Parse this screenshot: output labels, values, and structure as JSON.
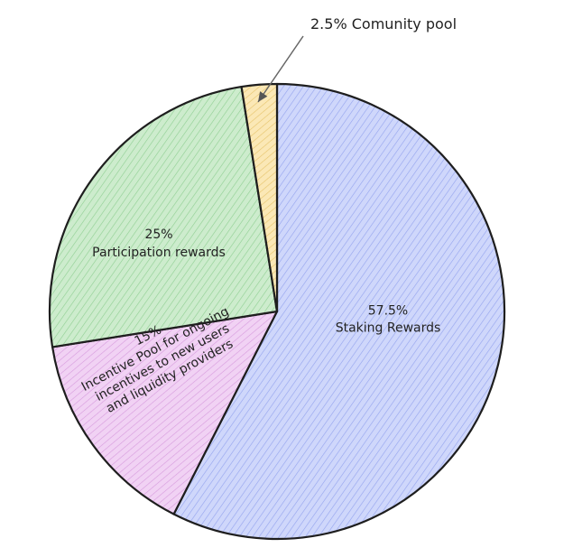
{
  "chart_data": {
    "type": "pie",
    "title": "",
    "start_angle_deg": 0,
    "direction": "clockwise",
    "slices": [
      {
        "value": 57.5,
        "label_lines": [
          "57.5%",
          "Staking Rewards"
        ],
        "color": "#cfd7fb",
        "hatch": "#93a3ee"
      },
      {
        "value": 15,
        "label_lines": [
          "15%",
          "Incentive Pool for ongoing",
          "incentives to new users",
          "and liquidity providers"
        ],
        "color": "#f1d2f4",
        "hatch": "#d79add"
      },
      {
        "value": 25,
        "label_lines": [
          "25%",
          "Participation rewards"
        ],
        "color": "#cdeccd",
        "hatch": "#8fcf92"
      },
      {
        "value": 2.5,
        "label_lines": [
          "2.5% Comunity pool"
        ],
        "color": "#fbe8b6",
        "hatch": "#e6c36a"
      }
    ]
  }
}
